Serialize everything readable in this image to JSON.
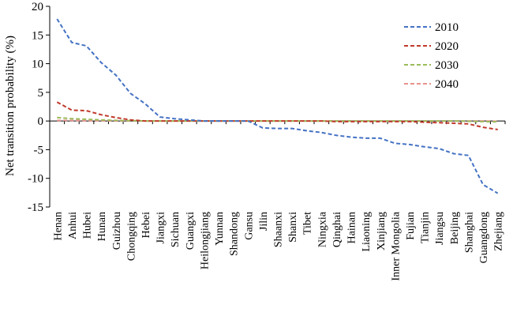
{
  "chart_data": {
    "type": "line",
    "ylabel": "Net transition probability (%)",
    "xlabel": "",
    "ylim": [
      -15,
      20
    ],
    "yticks": [
      -15,
      -10,
      -5,
      0,
      5,
      10,
      15,
      20
    ],
    "grid": false,
    "legend_position": "right",
    "categories": [
      "Henan",
      "Anhui",
      "Hubei",
      "Hunan",
      "Guizhou",
      "Chongqing",
      "Hebei",
      "Jiangxi",
      "Sichuan",
      "Guangxi",
      "Heilongjiang",
      "Yunnan",
      "Shandong",
      "Gansu",
      "Jilin",
      "Shaanxi",
      "Shanxi",
      "Tibet",
      "Ningxia",
      "Qinghai",
      "Hainan",
      "Liaoning",
      "Xinjiang",
      "Inner Mongolia",
      "Fujian",
      "Tianjin",
      "Jiangsu",
      "Beijing",
      "Shanghai",
      "Guangdong",
      "Zhejiang"
    ],
    "series": [
      {
        "name": "2010",
        "color": "#4472c4",
        "values": [
          17.8,
          13.7,
          13.1,
          10.2,
          8.0,
          4.8,
          3.0,
          0.7,
          0.4,
          0.2,
          0.0,
          0.0,
          0.0,
          0.0,
          -1.2,
          -1.3,
          -1.3,
          -1.7,
          -2.0,
          -2.5,
          -2.8,
          -3.0,
          -3.0,
          -3.9,
          -4.1,
          -4.5,
          -4.8,
          -5.7,
          -6.0,
          -11.1,
          -12.6
        ]
      },
      {
        "name": "2020",
        "color": "#c0392b",
        "values": [
          3.3,
          1.9,
          1.8,
          1.1,
          0.6,
          0.2,
          0.0,
          0.0,
          0.0,
          0.0,
          0.0,
          0.0,
          0.0,
          0.0,
          0.0,
          0.0,
          0.0,
          0.0,
          0.0,
          -0.1,
          -0.1,
          -0.1,
          -0.1,
          -0.1,
          -0.1,
          -0.2,
          -0.3,
          -0.4,
          -0.5,
          -1.1,
          -1.5
        ]
      },
      {
        "name": "2030",
        "color": "#9bbb59",
        "values": [
          0.6,
          0.4,
          0.3,
          0.2,
          0.1,
          0.05,
          0.0,
          0.0,
          0.0,
          0.0,
          0.0,
          0.0,
          0.0,
          0.0,
          0.0,
          0.0,
          0.0,
          0.0,
          0.0,
          0.0,
          0.0,
          0.0,
          0.0,
          0.0,
          0.0,
          0.0,
          0.0,
          0.0,
          -0.05,
          -0.1,
          -0.15
        ]
      },
      {
        "name": "2040",
        "color": "#e8918c",
        "values": [
          0.1,
          0.1,
          0.05,
          0.05,
          0.0,
          0.0,
          0.0,
          0.0,
          0.0,
          0.0,
          0.0,
          0.0,
          0.0,
          0.0,
          0.0,
          0.0,
          0.0,
          0.0,
          0.0,
          0.0,
          0.0,
          0.0,
          0.0,
          0.0,
          0.0,
          0.0,
          0.0,
          0.0,
          0.0,
          0.0,
          -0.05
        ]
      }
    ]
  }
}
